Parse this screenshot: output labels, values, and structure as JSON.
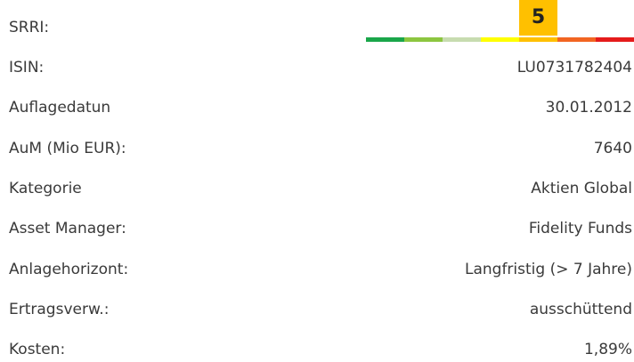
{
  "srri": {
    "label": "SRRI:",
    "value": 5
  },
  "rows": [
    {
      "label": "ISIN:",
      "value": "LU0731782404"
    },
    {
      "label": "Auflagedatun",
      "value": "30.01.2012"
    },
    {
      "label": "AuM (Mio EUR):",
      "value": 7640
    },
    {
      "label": "Kategorie",
      "value": "Aktien Global"
    },
    {
      "label": "Asset Manager:",
      "value": "Fidelity Funds"
    },
    {
      "label": "Anlagehorizont:",
      "value": "Langfristig (> 7 Jahre)"
    },
    {
      "label": "Ertragsverw.:",
      "value": "ausschüttend"
    },
    {
      "label": "Kosten:",
      "value": "1,89%"
    }
  ]
}
